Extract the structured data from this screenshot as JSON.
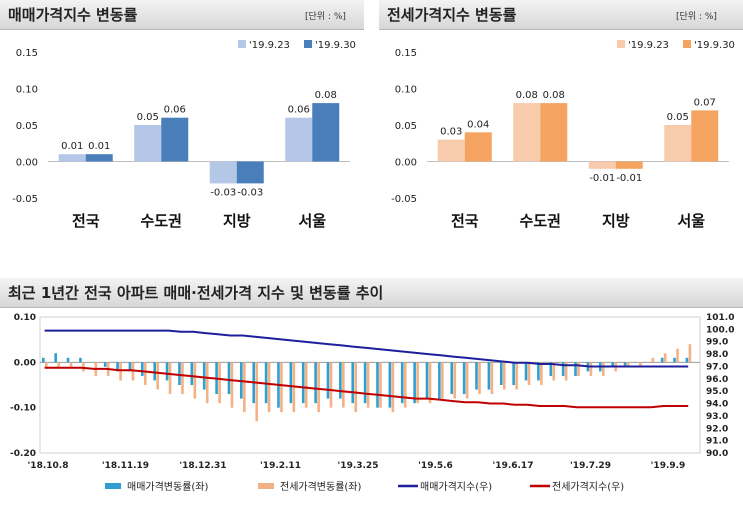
{
  "panels": [
    {
      "title": "매매가격지수 변동률",
      "unit": "[단위 : %]",
      "chart_data": {
        "type": "bar",
        "categories": [
          "전국",
          "수도권",
          "지방",
          "서울"
        ],
        "series": [
          {
            "name": "'19.9.23",
            "values": [
              0.01,
              0.05,
              -0.03,
              0.06
            ],
            "color": "#b4c7e7"
          },
          {
            "name": "'19.9.30",
            "values": [
              0.01,
              0.06,
              -0.03,
              0.08
            ],
            "color": "#4a7ebb"
          }
        ],
        "ylim": [
          -0.05,
          0.15
        ],
        "yticks": [
          "0.15",
          "0.10",
          "0.05",
          "0.00",
          "-0.05"
        ],
        "data_labels": [
          [
            "0.01",
            "0.05",
            "-0.03",
            "0.06"
          ],
          [
            "0.01",
            "0.06",
            "-0.03",
            "0.08"
          ]
        ]
      }
    },
    {
      "title": "전세가격지수 변동률",
      "unit": "[단위 : %]",
      "chart_data": {
        "type": "bar",
        "categories": [
          "전국",
          "수도권",
          "지방",
          "서울"
        ],
        "series": [
          {
            "name": "'19.9.23",
            "values": [
              0.03,
              0.08,
              -0.01,
              0.05
            ],
            "color": "#f8cbad"
          },
          {
            "name": "'19.9.30",
            "values": [
              0.04,
              0.08,
              -0.01,
              0.07
            ],
            "color": "#f4a460"
          }
        ],
        "ylim": [
          -0.05,
          0.15
        ],
        "yticks": [
          "0.15",
          "0.10",
          "0.05",
          "0.00",
          "-0.05"
        ],
        "data_labels": [
          [
            "0.03",
            "0.08",
            "-0.01",
            "0.05"
          ],
          [
            "0.04",
            "0.08",
            "-0.01",
            "0.07"
          ]
        ]
      }
    }
  ],
  "trend": {
    "title": "최근 1년간 전국 아파트 매매·전세가격 지수 및 변동률 추이",
    "chart_data": {
      "type": "bar+line",
      "x_ticks": [
        "'18.10.8",
        "'18.11.19",
        "'18.12.31",
        "'19.2.11",
        "'19.3.25",
        "'19.5.6",
        "'19.6.17",
        "'19.7.29",
        "'19.9.9"
      ],
      "y_left_ticks": [
        "0.10",
        "0.00",
        "-0.10",
        "-0.20"
      ],
      "y_left_lim": [
        -0.2,
        0.1
      ],
      "y_right_ticks": [
        "101.0",
        "100.0",
        "99.0",
        "98.0",
        "97.0",
        "96.0",
        "95.0",
        "94.0",
        "93.0",
        "92.0",
        "91.0",
        "90.0"
      ],
      "y_right_lim": [
        90,
        101
      ],
      "series": [
        {
          "name": "매매가격변동률(좌)",
          "axis": "left",
          "kind": "bar",
          "color": "#2e9fd0",
          "values": [
            0.01,
            0.02,
            0.01,
            0.01,
            0,
            -0.01,
            -0.02,
            -0.02,
            -0.03,
            -0.04,
            -0.04,
            -0.05,
            -0.05,
            -0.06,
            -0.07,
            -0.07,
            -0.08,
            -0.09,
            -0.09,
            -0.1,
            -0.09,
            -0.09,
            -0.09,
            -0.08,
            -0.08,
            -0.09,
            -0.09,
            -0.1,
            -0.1,
            -0.09,
            -0.09,
            -0.08,
            -0.08,
            -0.07,
            -0.07,
            -0.06,
            -0.06,
            -0.05,
            -0.05,
            -0.04,
            -0.04,
            -0.03,
            -0.03,
            -0.03,
            -0.02,
            -0.02,
            -0.01,
            -0.01,
            0,
            0,
            0.01,
            0.01,
            0.01
          ]
        },
        {
          "name": "전세가격변동률(좌)",
          "axis": "left",
          "kind": "bar",
          "color": "#f4b183",
          "values": [
            -0.01,
            -0.01,
            -0.01,
            -0.02,
            -0.03,
            -0.03,
            -0.04,
            -0.04,
            -0.05,
            -0.06,
            -0.07,
            -0.07,
            -0.08,
            -0.09,
            -0.09,
            -0.1,
            -0.11,
            -0.13,
            -0.11,
            -0.11,
            -0.11,
            -0.1,
            -0.11,
            -0.1,
            -0.1,
            -0.11,
            -0.1,
            -0.1,
            -0.11,
            -0.1,
            -0.09,
            -0.09,
            -0.08,
            -0.08,
            -0.08,
            -0.07,
            -0.07,
            -0.06,
            -0.06,
            -0.05,
            -0.05,
            -0.04,
            -0.04,
            -0.03,
            -0.03,
            -0.03,
            -0.02,
            -0.01,
            -0.01,
            0.01,
            0.02,
            0.03,
            0.04
          ]
        },
        {
          "name": "매매가격지수(우)",
          "axis": "right",
          "kind": "line",
          "color": "#1f1f9c",
          "values": [
            99.9,
            99.9,
            99.9,
            99.9,
            99.9,
            99.9,
            99.9,
            99.9,
            99.9,
            99.9,
            99.9,
            99.8,
            99.8,
            99.7,
            99.6,
            99.5,
            99.5,
            99.4,
            99.3,
            99.2,
            99.1,
            99.0,
            98.9,
            98.8,
            98.7,
            98.6,
            98.5,
            98.4,
            98.3,
            98.2,
            98.1,
            98.0,
            97.9,
            97.8,
            97.7,
            97.6,
            97.5,
            97.4,
            97.3,
            97.3,
            97.2,
            97.2,
            97.1,
            97.1,
            97.0,
            97.0,
            97.0,
            97.0,
            97.0,
            97.0,
            97.0,
            97.0,
            97.0
          ]
        },
        {
          "name": "전세가격지수(우)",
          "axis": "right",
          "kind": "line",
          "color": "#c00000",
          "values": [
            96.9,
            96.9,
            96.9,
            96.9,
            96.8,
            96.8,
            96.7,
            96.7,
            96.6,
            96.5,
            96.4,
            96.3,
            96.2,
            96.1,
            96.0,
            95.9,
            95.8,
            95.7,
            95.6,
            95.5,
            95.4,
            95.3,
            95.2,
            95.1,
            95.0,
            94.9,
            94.8,
            94.7,
            94.6,
            94.5,
            94.4,
            94.4,
            94.3,
            94.2,
            94.1,
            94.1,
            94.0,
            94.0,
            93.9,
            93.9,
            93.8,
            93.8,
            93.8,
            93.7,
            93.7,
            93.7,
            93.7,
            93.7,
            93.7,
            93.7,
            93.8,
            93.8,
            93.8
          ]
        }
      ]
    }
  }
}
